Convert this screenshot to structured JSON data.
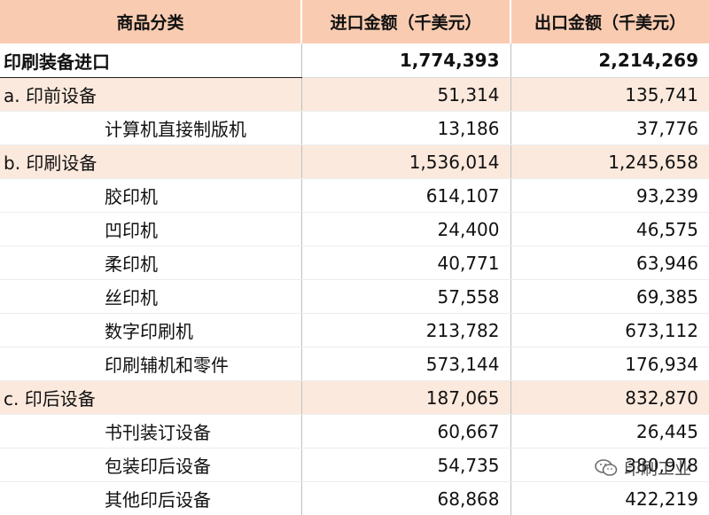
{
  "table": {
    "headers": [
      "商品分类",
      "进口金额（千美元）",
      "出口金额（千美元）"
    ],
    "total": {
      "name": "印刷装备进口",
      "import": "1,774,393",
      "export": "2,214,269"
    },
    "rows": [
      {
        "type": "cat",
        "name": "a. 印前设备",
        "import": "51,314",
        "export": "135,741"
      },
      {
        "type": "sub",
        "name": "计算机直接制版机",
        "import": "13,186",
        "export": "37,776"
      },
      {
        "type": "cat",
        "name": "b. 印刷设备",
        "import": "1,536,014",
        "export": "1,245,658"
      },
      {
        "type": "sub",
        "name": "胶印机",
        "import": "614,107",
        "export": "93,239"
      },
      {
        "type": "sub",
        "name": "凹印机",
        "import": "24,400",
        "export": "46,575"
      },
      {
        "type": "sub",
        "name": "柔印机",
        "import": "40,771",
        "export": "63,946"
      },
      {
        "type": "sub",
        "name": "丝印机",
        "import": "57,558",
        "export": "69,385"
      },
      {
        "type": "sub",
        "name": "数字印刷机",
        "import": "213,782",
        "export": "673,112"
      },
      {
        "type": "sub",
        "name": "印刷辅机和零件",
        "import": "573,144",
        "export": "176,934"
      },
      {
        "type": "cat",
        "name": "c.  印后设备",
        "import": "187,065",
        "export": "832,870"
      },
      {
        "type": "sub",
        "name": "书刊装订设备",
        "import": "60,667",
        "export": "26,445"
      },
      {
        "type": "sub",
        "name": "包装印后设备",
        "import": "54,735",
        "export": "380,978"
      },
      {
        "type": "sub",
        "name": "其他印后设备",
        "import": "68,868",
        "export": "422,219"
      }
    ]
  },
  "watermark": {
    "text": "印刷工业",
    "icon": "wechat-icon"
  }
}
